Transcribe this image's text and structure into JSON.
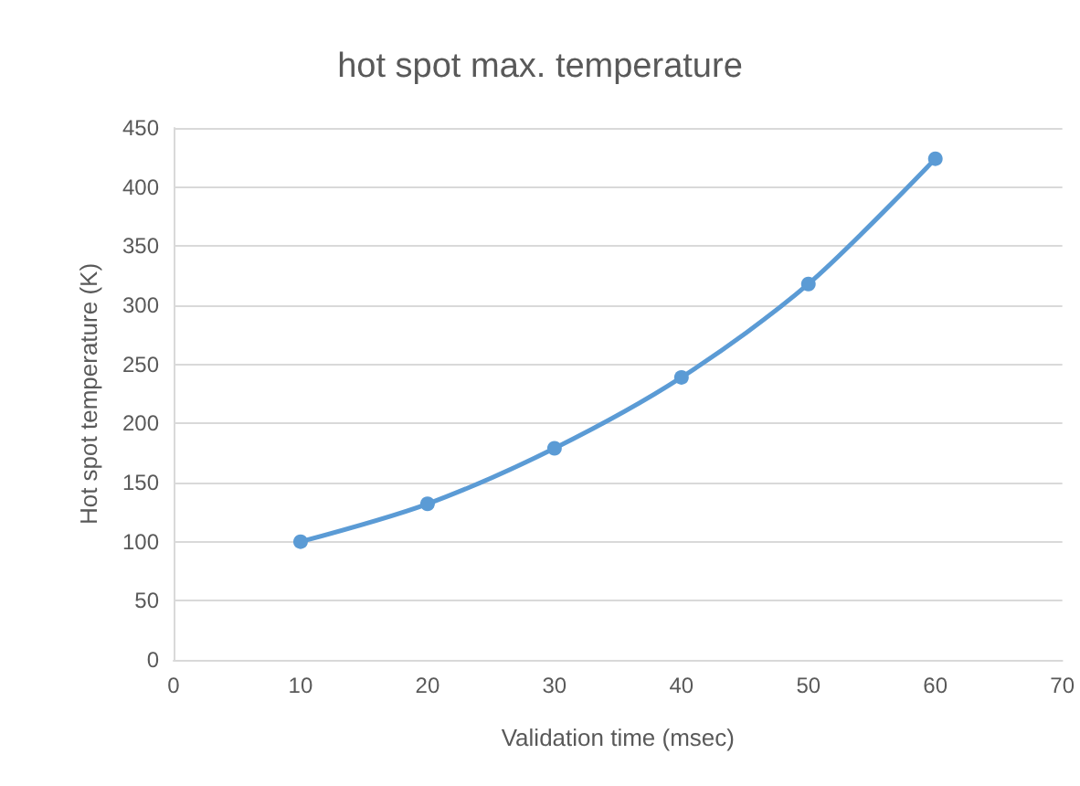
{
  "chart_data": {
    "type": "line",
    "title": "hot spot max. temperature",
    "xlabel": "Validation time (msec)",
    "ylabel": "Hot spot temperature (K)",
    "x": [
      10,
      20,
      30,
      40,
      50,
      60
    ],
    "series": [
      {
        "color": "#5b9bd5",
        "values": [
          100,
          132,
          179,
          239,
          318,
          424
        ]
      }
    ],
    "xlim": [
      0,
      70
    ],
    "xticks": [
      0,
      10,
      20,
      30,
      40,
      50,
      60,
      70
    ],
    "ylim": [
      0,
      450
    ],
    "yticks": [
      0,
      50,
      100,
      150,
      200,
      250,
      300,
      350,
      400,
      450
    ],
    "grid": "y",
    "marker": "circle",
    "line_style": "solid"
  }
}
